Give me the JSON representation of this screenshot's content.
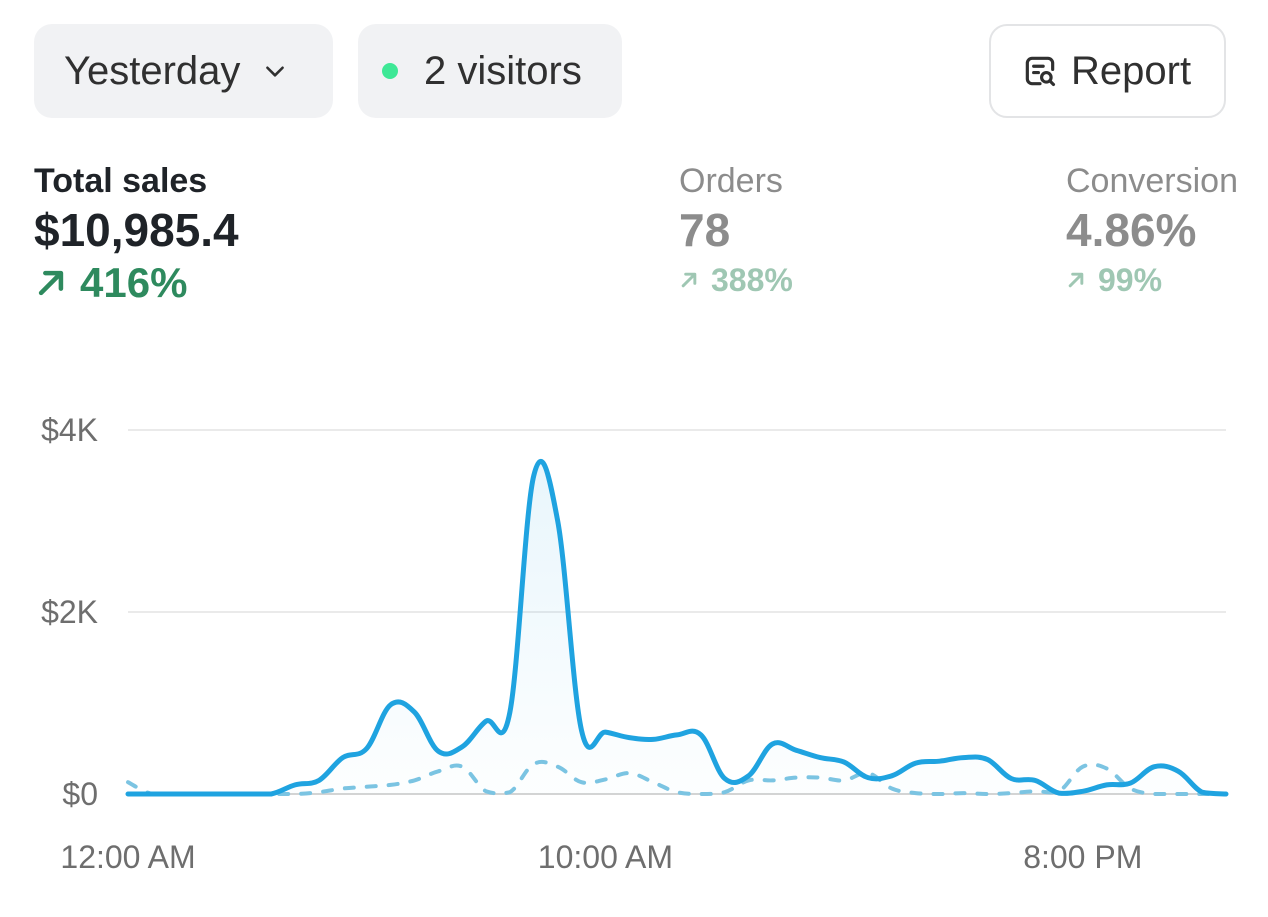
{
  "toolbar": {
    "date_range_label": "Yesterday",
    "visitors_label": "2 visitors",
    "live_dot_color": "#3ee896",
    "report_label": "Report",
    "icons": {
      "date_dropdown": "chevron-down-icon",
      "report": "report-search-icon"
    }
  },
  "metrics": {
    "total_sales": {
      "label": "Total sales",
      "value": "$10,985.4",
      "change": "416%"
    },
    "orders": {
      "label": "Orders",
      "value": "78",
      "change": "388%"
    },
    "conversion": {
      "label": "Conversion",
      "value": "4.86%",
      "change": "99%"
    },
    "colors": {
      "positive": "#2e8a5e",
      "positive_muted": "#9fc7b3",
      "muted_text": "#8c8c8c"
    }
  },
  "chart_data": {
    "type": "area",
    "x_tick_labels": [
      "12:00 AM",
      "10:00 AM",
      "8:00 PM"
    ],
    "y_tick_labels": [
      "$4K",
      "$2K",
      "$0"
    ],
    "y_ticks": [
      4000,
      2000,
      0
    ],
    "ylim": [
      0,
      4000
    ],
    "x_unit": "hours since 12:00 AM",
    "xlim": [
      0,
      23
    ],
    "x_tick_positions": [
      0,
      10,
      20
    ],
    "grid": true,
    "series": [
      {
        "line_color": "#1fa3e0",
        "style": "solid",
        "filled": true,
        "x": [
          0,
          0.5,
          1,
          1.5,
          2,
          2.5,
          3,
          3.5,
          4,
          4.5,
          5,
          5.5,
          6,
          6.5,
          7,
          7.5,
          8,
          8.5,
          9,
          9.5,
          10,
          10.5,
          11,
          11.5,
          12,
          12.5,
          13,
          13.5,
          14,
          14.5,
          15,
          15.5,
          16,
          16.5,
          17,
          17.5,
          18,
          18.5,
          19,
          19.5,
          20,
          20.5,
          21,
          21.5,
          22,
          22.5,
          23
        ],
        "values": [
          0,
          0,
          0,
          0,
          0,
          0,
          0,
          100,
          150,
          400,
          500,
          980,
          900,
          470,
          520,
          800,
          900,
          3500,
          3000,
          700,
          680,
          620,
          600,
          650,
          650,
          170,
          200,
          550,
          480,
          400,
          350,
          180,
          200,
          340,
          360,
          400,
          380,
          170,
          150,
          10,
          30,
          100,
          120,
          300,
          250,
          20,
          0
        ]
      },
      {
        "line_color": "#7cc4e2",
        "style": "dashed",
        "filled": false,
        "x": [
          0,
          0.5,
          1,
          1.5,
          2,
          2.5,
          3,
          3.5,
          4,
          4.5,
          5,
          5.5,
          6,
          6.5,
          7,
          7.5,
          8,
          8.5,
          9,
          9.5,
          10,
          10.5,
          11,
          11.5,
          12,
          12.5,
          13,
          13.5,
          14,
          14.5,
          15,
          15.5,
          16,
          16.5,
          17,
          17.5,
          18,
          18.5,
          19,
          19.5,
          20,
          20.5,
          21,
          21.5,
          22,
          22.5,
          23
        ],
        "values": [
          130,
          0,
          0,
          0,
          0,
          0,
          0,
          0,
          20,
          60,
          80,
          100,
          150,
          250,
          300,
          30,
          20,
          330,
          300,
          130,
          160,
          230,
          130,
          20,
          0,
          20,
          150,
          150,
          180,
          180,
          150,
          230,
          60,
          10,
          0,
          10,
          0,
          10,
          30,
          30,
          300,
          280,
          60,
          0,
          0,
          0,
          0
        ]
      }
    ]
  }
}
